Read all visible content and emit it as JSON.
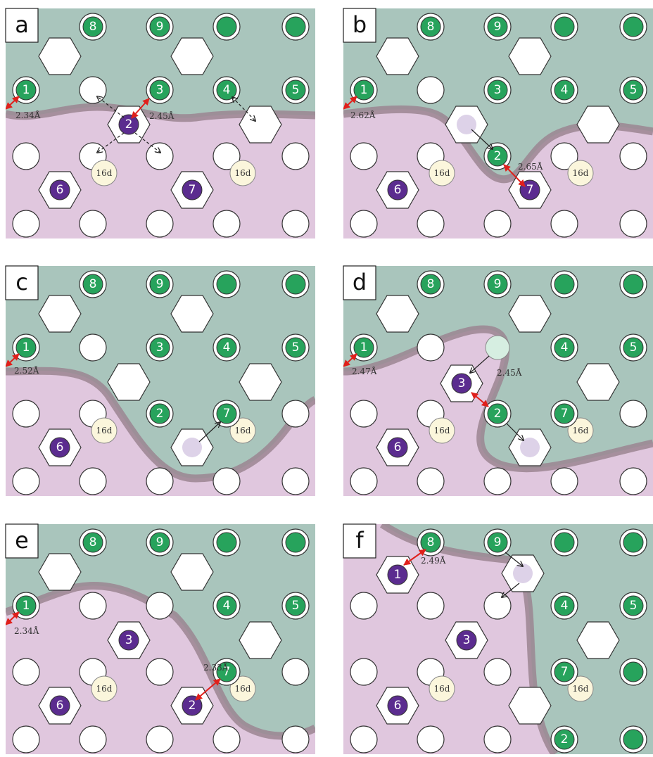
{
  "panels": [
    {
      "label": "a",
      "atoms": [
        "8",
        "9",
        "1",
        "3",
        "4",
        "5",
        "2",
        "6",
        "7"
      ],
      "distances": [
        "2.34Å",
        "2.45Å"
      ],
      "sites": [
        "16d",
        "16d"
      ]
    },
    {
      "label": "b",
      "atoms": [
        "8",
        "9",
        "1",
        "3",
        "4",
        "5",
        "2",
        "6",
        "7"
      ],
      "distances": [
        "2.62Å",
        "2.65Å"
      ],
      "sites": [
        "16d",
        "16d"
      ]
    },
    {
      "label": "c",
      "atoms": [
        "8",
        "9",
        "1",
        "3",
        "4",
        "5",
        "2",
        "7",
        "6"
      ],
      "distances": [
        "2.52Å"
      ],
      "sites": [
        "16d",
        "16d"
      ]
    },
    {
      "label": "d",
      "atoms": [
        "8",
        "9",
        "1",
        "4",
        "5",
        "3",
        "2",
        "7",
        "6"
      ],
      "distances": [
        "2.47Å",
        "2.45Å"
      ],
      "sites": [
        "16d",
        "16d"
      ]
    },
    {
      "label": "e",
      "atoms": [
        "8",
        "9",
        "1",
        "4",
        "5",
        "3",
        "7",
        "6",
        "2"
      ],
      "distances": [
        "2.34Å",
        "2.33Å"
      ],
      "sites": [
        "16d",
        "16d"
      ]
    },
    {
      "label": "f",
      "atoms": [
        "8",
        "9",
        "1",
        "4",
        "5",
        "3",
        "7",
        "6",
        "2"
      ],
      "distances": [
        "2.49Å"
      ],
      "sites": [
        "16d",
        "16d"
      ]
    }
  ]
}
